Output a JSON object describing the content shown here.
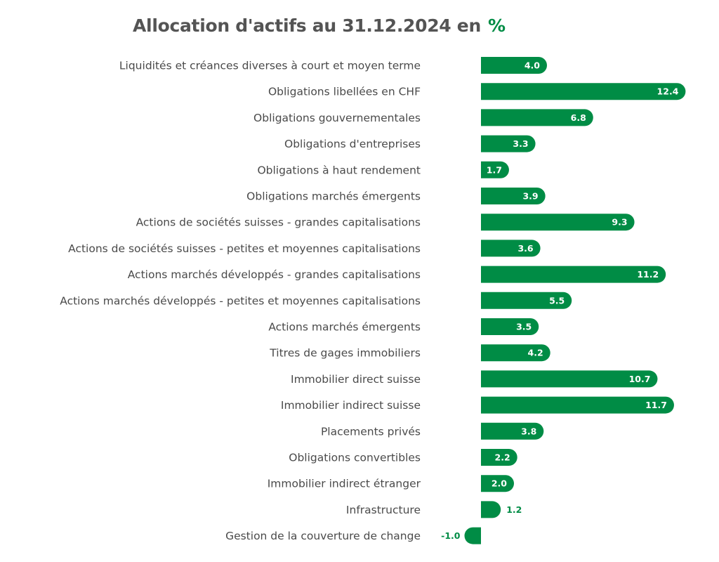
{
  "chart_data": {
    "type": "bar",
    "orientation": "horizontal",
    "title": "Allocation d'actifs au 31.12.2024 en",
    "unit": "%",
    "bar_color": "#008C45",
    "categories": [
      "Liquidités et créances diverses à court et moyen terme",
      "Obligations libellées en CHF",
      "Obligations gouvernementales",
      "Obligations d'entreprises",
      "Obligations à haut rendement",
      "Obligations marchés émergents",
      "Actions de sociétés suisses - grandes capitalisations",
      "Actions de sociétés suisses - petites et moyennes capitalisations",
      "Actions marchés développés - grandes capitalisations",
      "Actions marchés développés - petites et moyennes capitalisations",
      "Actions marchés émergents",
      "Titres de gages immobiliers",
      "Immobilier direct suisse",
      "Immobilier indirect suisse",
      "Placements privés",
      "Obligations convertibles",
      "Immobilier indirect étranger",
      "Infrastructure",
      "Gestion de la couverture de change"
    ],
    "values": [
      4.0,
      12.4,
      6.8,
      3.3,
      1.7,
      3.9,
      9.3,
      3.6,
      11.2,
      5.5,
      3.5,
      4.2,
      10.7,
      11.7,
      3.8,
      2.2,
      2.0,
      1.2,
      -1.0
    ],
    "value_labels": [
      "4.0",
      "12.4",
      "6.8",
      "3.3",
      "1.7",
      "3.9",
      "9.3",
      "3.6",
      "11.2",
      "5.5",
      "3.5",
      "4.2",
      "10.7",
      "11.7",
      "3.8",
      "2.2",
      "2.0",
      "1.2",
      "-1.0"
    ],
    "xlim": [
      -1.0,
      12.4
    ],
    "grid": false,
    "legend": "none"
  }
}
